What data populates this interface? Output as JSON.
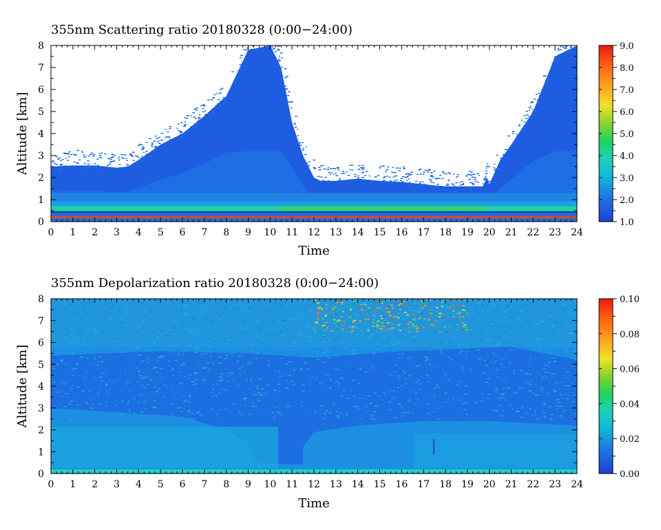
{
  "chart_data": [
    {
      "type": "heatmap",
      "title": "355nm Scattering ratio  20180328 (0:00−24:00)",
      "xlabel": "Time",
      "ylabel": "Altitude [km]",
      "xlim": [
        0,
        24
      ],
      "ylim": [
        0,
        8
      ],
      "x_ticks": [
        "0",
        "1",
        "2",
        "3",
        "4",
        "5",
        "6",
        "7",
        "8",
        "9",
        "10",
        "11",
        "12",
        "13",
        "14",
        "15",
        "16",
        "17",
        "18",
        "19",
        "20",
        "21",
        "22",
        "23",
        "24"
      ],
      "y_ticks": [
        "0",
        "1",
        "2",
        "3",
        "4",
        "5",
        "6",
        "7",
        "8"
      ],
      "colorbar": {
        "min": 1.0,
        "max": 9.0,
        "ticks": [
          "1.0",
          "2.0",
          "3.0",
          "4.0",
          "5.0",
          "6.0",
          "7.0",
          "8.0",
          "9.0"
        ]
      },
      "signal_top_km": [
        [
          0,
          2.5
        ],
        [
          1,
          2.55
        ],
        [
          2,
          2.55
        ],
        [
          3,
          2.45
        ],
        [
          3.5,
          2.5
        ],
        [
          4,
          2.8
        ],
        [
          5,
          3.5
        ],
        [
          6,
          4.0
        ],
        [
          7,
          4.8
        ],
        [
          8,
          5.7
        ],
        [
          9,
          7.8
        ],
        [
          10,
          8.0
        ],
        [
          10.5,
          7.0
        ],
        [
          11,
          4.5
        ],
        [
          11.5,
          3.0
        ],
        [
          12,
          2.0
        ],
        [
          12.3,
          1.85
        ],
        [
          13,
          1.85
        ],
        [
          14,
          1.95
        ],
        [
          15,
          1.85
        ],
        [
          16,
          1.8
        ],
        [
          17,
          1.7
        ],
        [
          18,
          1.6
        ],
        [
          19,
          1.6
        ],
        [
          19.7,
          1.6
        ],
        [
          19.9,
          2.0
        ],
        [
          20,
          1.7
        ],
        [
          20.5,
          2.8
        ],
        [
          21,
          3.5
        ],
        [
          22,
          5.0
        ],
        [
          23,
          7.5
        ],
        [
          24,
          8.0
        ]
      ],
      "layers": [
        {
          "name": "aerosol layer",
          "bottom_km": 0.45,
          "top_km": 0.7,
          "value": 3.8
        },
        {
          "name": "surface",
          "bottom_km": 0.15,
          "top_km": 0.25,
          "value": 8.5
        }
      ]
    },
    {
      "type": "heatmap",
      "title": "355nm Depolarization ratio  20180328 (0:00−24:00)",
      "xlabel": "Time",
      "ylabel": "Altitude [km]",
      "xlim": [
        0,
        24
      ],
      "ylim": [
        0,
        8
      ],
      "x_ticks": [
        "0",
        "1",
        "2",
        "3",
        "4",
        "5",
        "6",
        "7",
        "8",
        "9",
        "10",
        "11",
        "12",
        "13",
        "14",
        "15",
        "16",
        "17",
        "18",
        "19",
        "20",
        "21",
        "22",
        "23",
        "24"
      ],
      "y_ticks": [
        "0",
        "1",
        "2",
        "3",
        "4",
        "5",
        "6",
        "7",
        "8"
      ],
      "colorbar": {
        "min": 0.0,
        "max": 0.1,
        "ticks": [
          "0.00",
          "0.02",
          "0.04",
          "0.06",
          "0.08",
          "0.10"
        ]
      },
      "typical_value": 0.015,
      "high_region": {
        "time_range": [
          12,
          19
        ],
        "altitude_range": [
          6.5,
          8
        ],
        "value": 0.06
      }
    }
  ]
}
